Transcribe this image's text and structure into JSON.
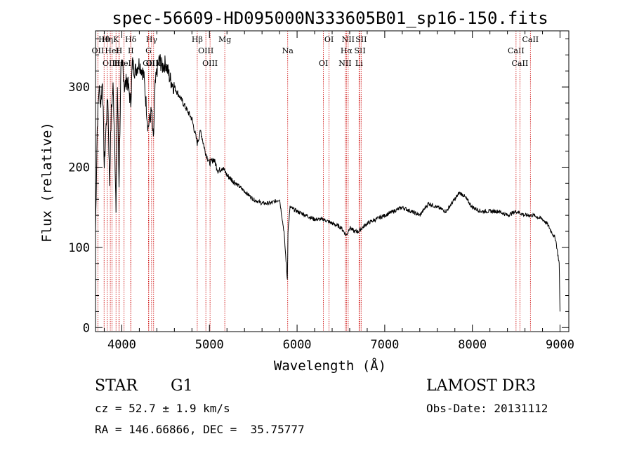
{
  "chart_data": {
    "type": "line",
    "title": "spec-56609-HD095000N333605B01_sp16-150.fits",
    "xlabel": "Wavelength (Å)",
    "ylabel": "Flux (relative)",
    "xlim": [
      3700,
      9100
    ],
    "ylim": [
      -5,
      370
    ],
    "x_ticks": [
      4000,
      5000,
      6000,
      7000,
      8000,
      9000
    ],
    "x_tick_labels": [
      "4000",
      "5000",
      "6000",
      "7000",
      "8000",
      "9000"
    ],
    "y_ticks": [
      0,
      100,
      200,
      300
    ],
    "y_tick_labels": [
      "0",
      "100",
      "200",
      "300"
    ],
    "series": [
      {
        "name": "flux",
        "x": [
          3700,
          3720,
          3740,
          3760,
          3780,
          3800,
          3820,
          3840,
          3860,
          3880,
          3900,
          3920,
          3934,
          3950,
          3968,
          3990,
          4010,
          4030,
          4060,
          4102,
          4120,
          4150,
          4200,
          4250,
          4300,
          4340,
          4360,
          4380,
          4400,
          4430,
          4460,
          4500,
          4550,
          4600,
          4650,
          4700,
          4750,
          4800,
          4861,
          4900,
          4950,
          5000,
          5050,
          5100,
          5150,
          5200,
          5250,
          5300,
          5400,
          5500,
          5600,
          5700,
          5800,
          5850,
          5889,
          5896,
          5920,
          6000,
          6100,
          6200,
          6300,
          6400,
          6500,
          6563,
          6600,
          6650,
          6700,
          6800,
          6900,
          7000,
          7100,
          7200,
          7300,
          7400,
          7500,
          7600,
          7700,
          7800,
          7850,
          7900,
          8000,
          8100,
          8200,
          8300,
          8400,
          8500,
          8600,
          8700,
          8800,
          8850,
          8900,
          8950,
          8990,
          9000
        ],
        "values": [
          120,
          250,
          300,
          280,
          310,
          200,
          250,
          290,
          180,
          270,
          300,
          230,
          140,
          300,
          180,
          320,
          330,
          300,
          310,
          280,
          330,
          320,
          330,
          315,
          250,
          270,
          230,
          300,
          320,
          335,
          325,
          330,
          310,
          300,
          290,
          280,
          270,
          260,
          230,
          245,
          220,
          205,
          210,
          195,
          200,
          190,
          185,
          180,
          170,
          160,
          155,
          155,
          160,
          120,
          60,
          120,
          150,
          145,
          140,
          135,
          135,
          130,
          125,
          115,
          125,
          120,
          120,
          130,
          135,
          140,
          145,
          150,
          145,
          140,
          155,
          150,
          145,
          160,
          168,
          165,
          150,
          145,
          145,
          145,
          140,
          145,
          140,
          140,
          135,
          130,
          120,
          110,
          80,
          20
        ]
      }
    ],
    "lines": [
      {
        "label": "Hθ",
        "wl": 3798
      },
      {
        "label": "OII",
        "wl": 3727
      },
      {
        "label": "OIII",
        "wl": 3869
      },
      {
        "label": "K",
        "wl": 3934
      },
      {
        "label": "HeI",
        "wl": 3889
      },
      {
        "label": "Hε",
        "wl": 3970
      },
      {
        "label": "Hη",
        "wl": 3835
      },
      {
        "label": "H",
        "wl": 3968
      },
      {
        "label": "HeI",
        "wl": 4026
      },
      {
        "label": "Hδ",
        "wl": 4102
      },
      {
        "label": "II",
        "wl": 4103
      },
      {
        "label": "GII",
        "wl": 4308
      },
      {
        "label": "Hγ",
        "wl": 4340
      },
      {
        "label": "G",
        "wl": 4305
      },
      {
        "label": "OIII",
        "wl": 4363
      },
      {
        "label": "Hβ",
        "wl": 4861
      },
      {
        "label": "OIII",
        "wl": 4959
      },
      {
        "label": "OIII",
        "wl": 5007
      },
      {
        "label": "Mg",
        "wl": 5175
      },
      {
        "label": "Na",
        "wl": 5893
      },
      {
        "label": "OI",
        "wl": 6300
      },
      {
        "label": "OI",
        "wl": 6364
      },
      {
        "label": "Hα",
        "wl": 6563
      },
      {
        "label": "NII",
        "wl": 6548
      },
      {
        "label": "NII",
        "wl": 6583
      },
      {
        "label": "SII",
        "wl": 6717
      },
      {
        "label": "Li",
        "wl": 6707
      },
      {
        "label": "SII",
        "wl": 6731
      },
      {
        "label": "CaII",
        "wl": 8498
      },
      {
        "label": "CaII",
        "wl": 8542
      },
      {
        "label": "CaII",
        "wl": 8662
      }
    ]
  },
  "info": {
    "object_type": "STAR",
    "subclass": "G1",
    "survey": "LAMOST DR3",
    "redshift": "cz = 52.7 ± 1.9 km/s",
    "obs_date": "Obs-Date: 20131112",
    "coords": "RA = 146.66866, DEC =  35.75777"
  },
  "colors": {
    "spectrum": "#000000",
    "line_markers": "#cc0000",
    "axes": "#000000"
  }
}
